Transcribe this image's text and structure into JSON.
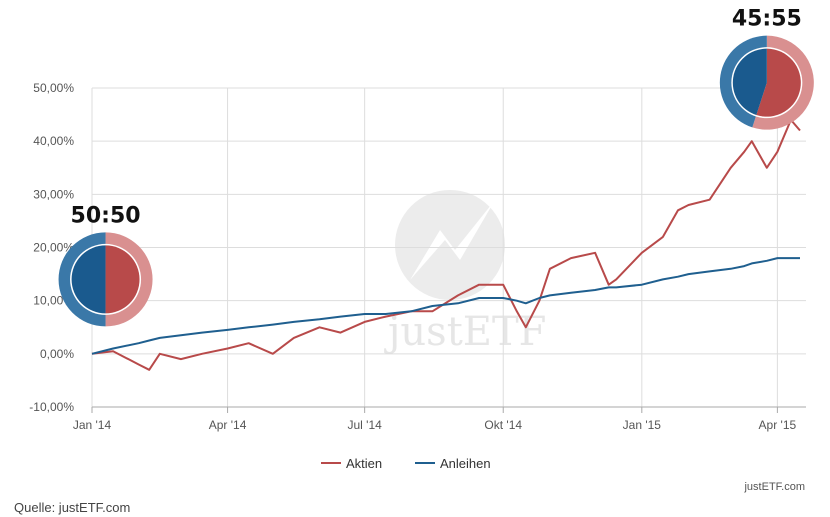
{
  "chart_data": {
    "type": "line",
    "x_tick_labels": [
      "Jan '14",
      "Apr '14",
      "Jul '14",
      "Okt '14",
      "Jan '15",
      "Apr '15"
    ],
    "x": [
      "2014-01-01",
      "2014-01-15",
      "2014-02-01",
      "2014-02-08",
      "2014-02-15",
      "2014-03-01",
      "2014-03-15",
      "2014-04-01",
      "2014-04-15",
      "2014-05-01",
      "2014-05-15",
      "2014-06-01",
      "2014-06-15",
      "2014-07-01",
      "2014-07-15",
      "2014-08-01",
      "2014-08-15",
      "2014-09-01",
      "2014-09-15",
      "2014-10-01",
      "2014-10-10",
      "2014-10-16",
      "2014-10-25",
      "2014-11-01",
      "2014-11-15",
      "2014-12-01",
      "2014-12-10",
      "2014-12-15",
      "2015-01-01",
      "2015-01-15",
      "2015-01-25",
      "2015-02-01",
      "2015-02-15",
      "2015-03-01",
      "2015-03-10",
      "2015-03-15",
      "2015-03-25",
      "2015-04-01",
      "2015-04-10",
      "2015-04-16"
    ],
    "y_tick_labels": [
      "-10,00%",
      "0,00%",
      "10,00%",
      "20,00%",
      "30,00%",
      "40,00%",
      "50,00%"
    ],
    "ylim": [
      -10,
      50
    ],
    "series": [
      {
        "name": "Aktien",
        "color": "#b84a4a",
        "values": [
          0,
          0.5,
          -2,
          -3,
          0,
          -1,
          0,
          1,
          2,
          0,
          3,
          5,
          4,
          6,
          7,
          8,
          8,
          11,
          13,
          13,
          8,
          5,
          10,
          16,
          18,
          19,
          13,
          14,
          19,
          22,
          27,
          28,
          29,
          35,
          38,
          40,
          35,
          38,
          44,
          42
        ]
      },
      {
        "name": "Anleihen",
        "color": "#1f5f8f",
        "values": [
          0,
          1,
          2,
          2.5,
          3,
          3.5,
          4,
          4.5,
          5,
          5.5,
          6,
          6.5,
          7,
          7.5,
          7.5,
          8,
          9,
          9.5,
          10.5,
          10.5,
          10,
          9.5,
          10.5,
          11,
          11.5,
          12,
          12.5,
          12.5,
          13,
          14,
          14.5,
          15,
          15.5,
          16,
          16.5,
          17,
          17.5,
          18,
          18,
          18
        ]
      }
    ],
    "grid": true,
    "legend": "bottom-center",
    "annotations": [
      {
        "label": "50:50",
        "x": "2014-01-10",
        "y": 14,
        "stock_share": 0.5
      },
      {
        "label": "45:55",
        "x": "2015-03-25",
        "y": 51,
        "stock_share": 0.55
      }
    ],
    "credit": "justETF.com",
    "watermark": "justETF"
  },
  "footer": {
    "source": "Quelle: justETF.com"
  },
  "style": {
    "gridline_color": "#dddddd",
    "axis_color": "#aaaaaa",
    "stock_light": "#d99090",
    "stock_dark": "#b84a4a",
    "bond_light": "#3a78a8",
    "bond_dark": "#1a5a8e"
  }
}
